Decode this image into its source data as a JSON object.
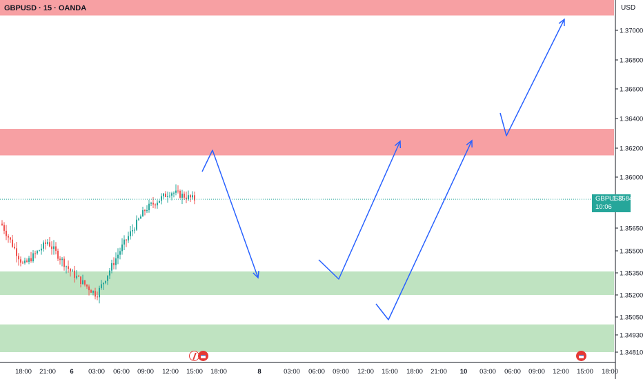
{
  "header": {
    "symbol_title": "GBPUSD · 15 · OANDA",
    "currency": "USD"
  },
  "price_tag": {
    "symbol": "GBPUSD",
    "price": "1.35848",
    "countdown": "10:06"
  },
  "events": [
    {
      "icon": "lightning-event-icon"
    },
    {
      "icon": "us-flag-event-icon"
    },
    {
      "icon": "us-flag-event-icon"
    }
  ],
  "colors": {
    "supply_zone": "#f7a0a3",
    "demand_zone": "#bfe3c1",
    "arrow": "#2962ff",
    "candle_up": "#26a69a",
    "candle_down": "#ef5350",
    "price_line": "#26a69a",
    "axis_line": "#131722"
  },
  "chart_data": {
    "type": "candlestick",
    "title": "GBPUSD · 15 · OANDA",
    "y_axis_unit": "USD",
    "y_ticks": [
      "1.37000",
      "1.36800",
      "1.36600",
      "1.36400",
      "1.36200",
      "1.36000",
      "1.35650",
      "1.35500",
      "1.35350",
      "1.35200",
      "1.35050",
      "1.34930",
      "1.34810"
    ],
    "x_ticks": [
      "18:00",
      "21:00",
      "6",
      "03:00",
      "06:00",
      "09:00",
      "12:00",
      "15:00",
      "18:00",
      "8",
      "03:00",
      "06:00",
      "09:00",
      "12:00",
      "15:00",
      "18:00",
      "21:00",
      "10",
      "03:00",
      "06:00",
      "09:00",
      "12:00",
      "15:00",
      "18:00"
    ],
    "current_price": 1.35848,
    "ohlc_waypoints": [
      {
        "x": "18:00",
        "close": 1.354
      },
      {
        "x": "21:00",
        "close": 1.3556
      },
      {
        "x": "6",
        "close": 1.3535
      },
      {
        "x": "03:00",
        "close": 1.352
      },
      {
        "x": "06:00",
        "close": 1.3552
      },
      {
        "x": "09:00",
        "close": 1.3578
      },
      {
        "x": "12:00",
        "close": 1.359
      },
      {
        "x": "15:00",
        "close": 1.35848
      }
    ],
    "zones": [
      {
        "type": "supply",
        "from": 1.371,
        "to": 1.3725
      },
      {
        "type": "supply",
        "from": 1.3615,
        "to": 1.3633
      },
      {
        "type": "demand",
        "from": 1.352,
        "to": 1.3536
      },
      {
        "type": "demand",
        "from": 1.3481,
        "to": 1.35
      }
    ],
    "projections": [
      {
        "points": [
          [
            "15:00",
            1.3605
          ],
          [
            "15:00",
            1.3619
          ],
          [
            "8",
            1.3533
          ]
        ]
      },
      {
        "points": [
          [
            "06:00",
            1.3546
          ],
          [
            "09:00",
            1.3533
          ],
          [
            "15:00",
            1.3625
          ]
        ]
      },
      {
        "points": [
          [
            "12:00",
            1.3514
          ],
          [
            "15:00",
            1.3504
          ],
          [
            "10",
            1.3625
          ]
        ]
      },
      {
        "points": [
          [
            "03:00",
            1.3645
          ],
          [
            "06:00",
            1.3627
          ],
          [
            "12:00",
            1.3708
          ]
        ]
      }
    ]
  }
}
